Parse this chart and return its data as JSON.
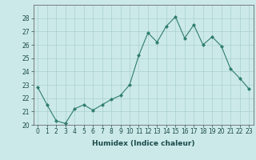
{
  "x": [
    0,
    1,
    2,
    3,
    4,
    5,
    6,
    7,
    8,
    9,
    10,
    11,
    12,
    13,
    14,
    15,
    16,
    17,
    18,
    19,
    20,
    21,
    22,
    23
  ],
  "y": [
    22.8,
    21.5,
    20.3,
    20.1,
    21.2,
    21.5,
    21.1,
    21.5,
    21.9,
    22.2,
    23.0,
    25.2,
    26.9,
    26.2,
    27.4,
    28.1,
    26.5,
    27.5,
    26.0,
    26.6,
    25.9,
    24.2,
    23.5,
    22.7
  ],
  "line_color": "#2e7d6e",
  "marker": "D",
  "marker_size": 2,
  "bg_color": "#cce9e9",
  "grid_color": "#aacfcf",
  "xlabel": "Humidex (Indice chaleur)",
  "ylim": [
    20,
    29
  ],
  "xlim": [
    -0.5,
    23.5
  ],
  "yticks": [
    20,
    21,
    22,
    23,
    24,
    25,
    26,
    27,
    28
  ],
  "xticks": [
    0,
    1,
    2,
    3,
    4,
    5,
    6,
    7,
    8,
    9,
    10,
    11,
    12,
    13,
    14,
    15,
    16,
    17,
    18,
    19,
    20,
    21,
    22,
    23
  ],
  "tick_fontsize": 5.5,
  "xlabel_fontsize": 6.5
}
